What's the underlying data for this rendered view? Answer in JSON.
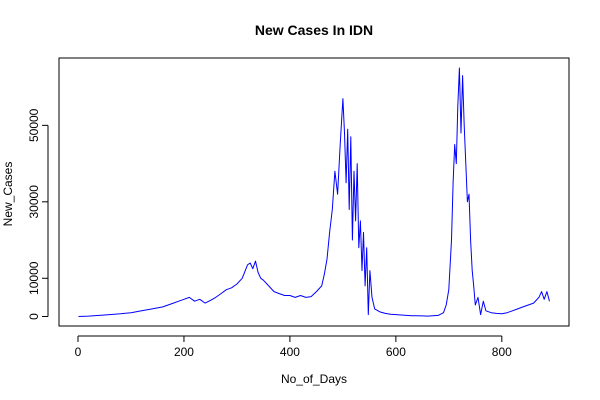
{
  "chart_data": {
    "type": "line",
    "title": "New Cases In IDN",
    "xlabel": "No_of_Days",
    "ylabel": "New_Cases",
    "xlim": [
      0,
      890
    ],
    "ylim": [
      0,
      65000
    ],
    "x_ticks": [
      0,
      200,
      400,
      600,
      800
    ],
    "y_ticks": [
      0,
      10000,
      30000,
      50000
    ],
    "grid": false,
    "legend": "none",
    "line_color": "#0000ff",
    "series": [
      {
        "x": [
          1,
          20,
          40,
          60,
          80,
          100,
          120,
          140,
          160,
          180,
          190,
          200,
          210,
          220,
          230,
          240,
          250,
          260,
          270,
          280,
          290,
          300,
          310,
          320,
          325,
          330,
          335,
          340,
          345,
          350,
          360,
          370,
          380,
          390,
          400,
          410,
          420,
          430,
          440,
          450,
          460,
          465,
          470,
          475,
          480,
          485,
          490,
          495,
          500,
          503,
          506,
          509,
          512,
          515,
          518,
          521,
          524,
          527,
          530,
          533,
          536,
          539,
          542,
          545,
          548,
          551,
          555,
          560,
          570,
          580,
          590,
          600,
          610,
          620,
          630,
          640,
          650,
          660,
          670,
          680,
          690,
          695,
          700,
          705,
          708,
          711,
          714,
          717,
          720,
          723,
          726,
          729,
          732,
          735,
          738,
          741,
          744,
          747,
          750,
          755,
          760,
          765,
          770,
          780,
          790,
          800,
          810,
          820,
          830,
          840,
          850,
          860,
          870,
          875,
          880,
          885,
          890
        ],
        "y": [
          0,
          100,
          300,
          500,
          700,
          1000,
          1500,
          2000,
          2500,
          3500,
          4000,
          4500,
          5000,
          4000,
          4500,
          3500,
          4200,
          5000,
          6000,
          7000,
          7500,
          8500,
          10000,
          13500,
          14000,
          12500,
          14500,
          11500,
          10000,
          9500,
          8000,
          6500,
          6000,
          5500,
          5500,
          5000,
          5500,
          5000,
          5200,
          6500,
          8000,
          11000,
          15000,
          22000,
          28000,
          38000,
          32000,
          45000,
          57000,
          48000,
          35000,
          49000,
          28000,
          47000,
          20000,
          38000,
          25000,
          40000,
          18000,
          25000,
          12000,
          22000,
          8000,
          18000,
          500,
          12000,
          5000,
          2000,
          1200,
          800,
          600,
          500,
          400,
          300,
          200,
          200,
          150,
          100,
          200,
          300,
          1000,
          3000,
          7000,
          20000,
          35000,
          45000,
          40000,
          55000,
          65000,
          48000,
          63000,
          50000,
          40000,
          30000,
          32000,
          20000,
          12000,
          8000,
          3000,
          5000,
          500,
          4000,
          1500,
          1000,
          800,
          700,
          1000,
          1500,
          2000,
          2500,
          3000,
          3500,
          5000,
          6500,
          4500,
          6500,
          4000
        ]
      }
    ]
  }
}
